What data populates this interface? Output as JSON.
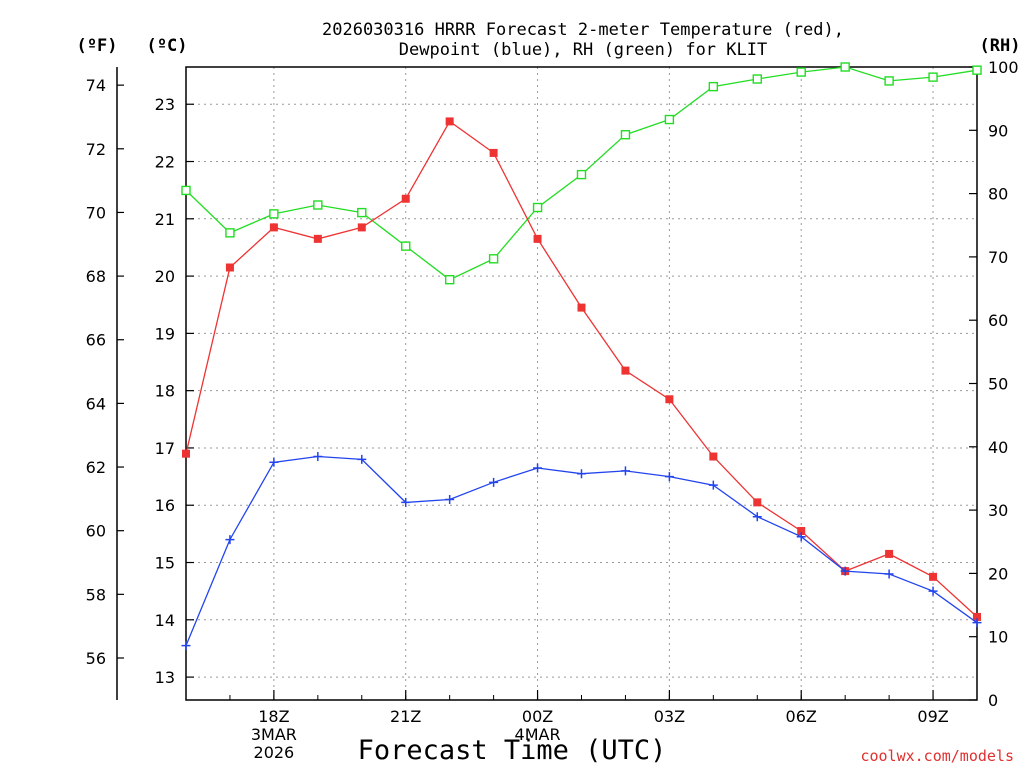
{
  "chart_data": {
    "type": "line",
    "title": [
      "2026030316 HRRR Forecast 2-meter Temperature (red),",
      "Dewpoint (blue), RH (green) for KLIT"
    ],
    "xlabel": "Forecast Time (UTC)",
    "credit": "coolwx.com/models",
    "unit_labels": {
      "fahrenheit": "(ºF)",
      "celsius": "(ºC)",
      "rh": "(RH)"
    },
    "x_hours": [
      16,
      17,
      18,
      19,
      20,
      21,
      22,
      23,
      24,
      25,
      26,
      27,
      28,
      29,
      30,
      31,
      32,
      33,
      34
    ],
    "xlim": [
      16,
      34
    ],
    "x_ticks": [
      {
        "hour": 18,
        "lines": [
          "18Z",
          "3MAR",
          "2026"
        ]
      },
      {
        "hour": 21,
        "lines": [
          "21Z"
        ]
      },
      {
        "hour": 24,
        "lines": [
          "00Z",
          "4MAR"
        ]
      },
      {
        "hour": 27,
        "lines": [
          "03Z"
        ]
      },
      {
        "hour": 30,
        "lines": [
          "06Z"
        ]
      },
      {
        "hour": 33,
        "lines": [
          "09Z"
        ]
      }
    ],
    "celsius_axis": {
      "ylim": [
        12.6,
        23.65
      ],
      "ticks": [
        13,
        14,
        15,
        16,
        17,
        18,
        19,
        20,
        21,
        22,
        23
      ]
    },
    "fahrenheit_axis": {
      "ticks": [
        56,
        58,
        60,
        62,
        64,
        66,
        68,
        70,
        72,
        74
      ]
    },
    "rh_axis": {
      "ylim": [
        0,
        100
      ],
      "ticks": [
        0,
        10,
        20,
        30,
        40,
        50,
        60,
        70,
        80,
        90,
        100
      ]
    },
    "series": [
      {
        "name": "Temperature",
        "axis": "celsius",
        "color": "#ee3333",
        "marker": "filled-square",
        "values": [
          16.9,
          20.15,
          20.85,
          20.65,
          20.85,
          21.35,
          22.7,
          22.15,
          20.65,
          19.45,
          18.35,
          17.85,
          16.85,
          16.05,
          15.55,
          14.85,
          15.15,
          14.75,
          14.05
        ]
      },
      {
        "name": "Dewpoint",
        "axis": "celsius",
        "color": "#2244ee",
        "marker": "plus",
        "values": [
          13.55,
          15.4,
          16.75,
          16.85,
          16.8,
          16.05,
          16.1,
          16.4,
          16.65,
          16.55,
          16.6,
          16.5,
          16.35,
          15.8,
          15.45,
          14.85,
          14.8,
          14.5,
          13.95
        ]
      },
      {
        "name": "RH",
        "axis": "rh",
        "color": "#22dd22",
        "marker": "open-square",
        "values": [
          80.5,
          73.8,
          76.8,
          78.2,
          77.0,
          71.7,
          66.4,
          69.7,
          77.8,
          83.0,
          89.3,
          91.7,
          96.9,
          98.1,
          99.2,
          100,
          97.8,
          98.4,
          99.5
        ]
      }
    ]
  }
}
